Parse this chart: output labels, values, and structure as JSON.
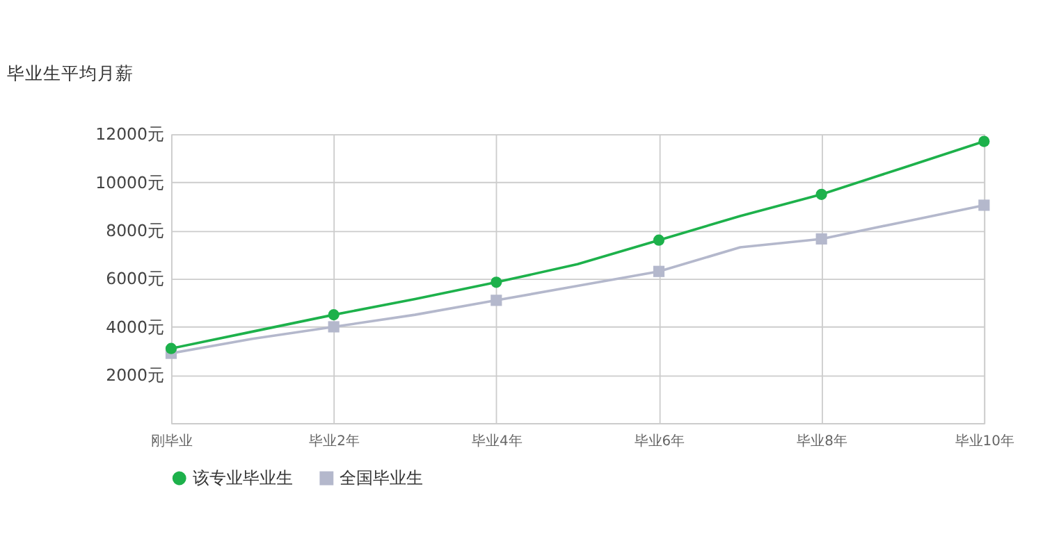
{
  "chart_data": {
    "type": "line",
    "title": "毕业生平均月薪",
    "categories": [
      "刚毕业",
      null,
      "毕业2年",
      null,
      "毕业4年",
      null,
      "毕业6年",
      null,
      "毕业8年",
      null,
      "毕业10年"
    ],
    "ylim": [
      0,
      12000
    ],
    "yticks": [
      {
        "value": 2000,
        "label": "2000元"
      },
      {
        "value": 4000,
        "label": "4000元"
      },
      {
        "value": 6000,
        "label": "6000元"
      },
      {
        "value": 8000,
        "label": "8000元"
      },
      {
        "value": 10000,
        "label": "10000元"
      },
      {
        "value": 12000,
        "label": "12000元"
      }
    ],
    "grid": true,
    "legend": "bottom",
    "series": [
      {
        "name": "该专业毕业生",
        "color": "#1db14b",
        "marker": "circle",
        "values": [
          3100,
          3800,
          4500,
          5150,
          5850,
          6600,
          7600,
          8600,
          9500,
          10600,
          11700
        ]
      },
      {
        "name": "全国毕业生",
        "color": "#b4b8cc",
        "marker": "square",
        "values": [
          2900,
          3500,
          4000,
          4500,
          5100,
          5700,
          6300,
          7300,
          7650,
          8350,
          9050
        ]
      }
    ]
  }
}
